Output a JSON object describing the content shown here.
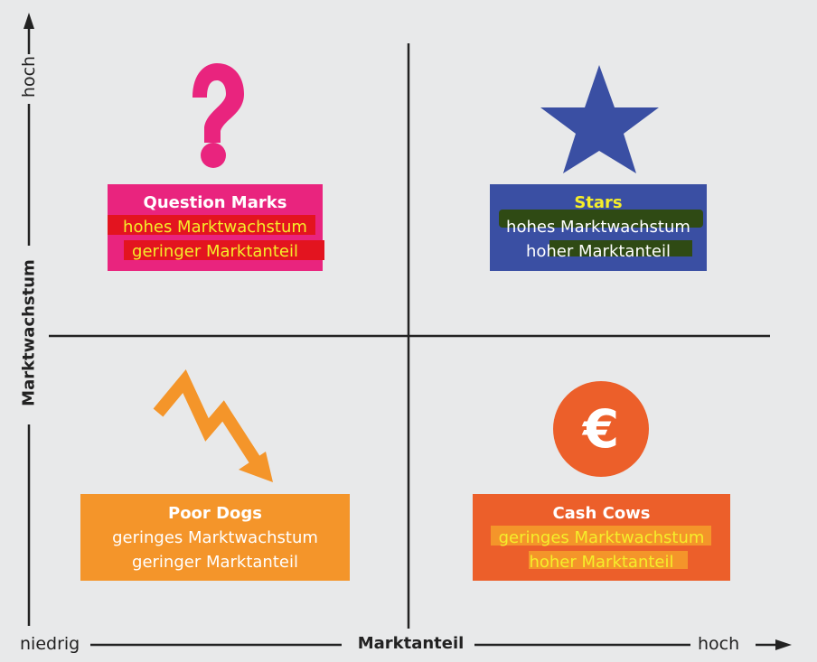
{
  "axes": {
    "y_label": "Marktwachstum",
    "y_high": "hoch",
    "x_label": "Marktanteil",
    "x_low": "niedrig",
    "x_high": "hoch"
  },
  "quadrants": {
    "question_marks": {
      "title": "Question Marks",
      "line1": "hohes Marktwachstum",
      "line2": "geringer Marktanteil",
      "color": "#e9247e",
      "icon": "question-mark-icon"
    },
    "stars": {
      "title": "Stars",
      "line1": "hohes Marktwachstum",
      "line2": "hoher Marktanteil",
      "color": "#3a4fa3",
      "icon": "star-icon"
    },
    "poor_dogs": {
      "title": "Poor Dogs",
      "line1": "geringes Marktwachstum",
      "line2": "geringer Marktanteil",
      "color": "#f4952a",
      "icon": "zigzag-down-arrow-icon"
    },
    "cash_cows": {
      "title": "Cash Cows",
      "line1": "geringes Marktwachstum",
      "line2": "hoher Marktanteil",
      "color": "#ec5f2a",
      "icon": "euro-coin-icon",
      "icon_text": "€"
    }
  }
}
